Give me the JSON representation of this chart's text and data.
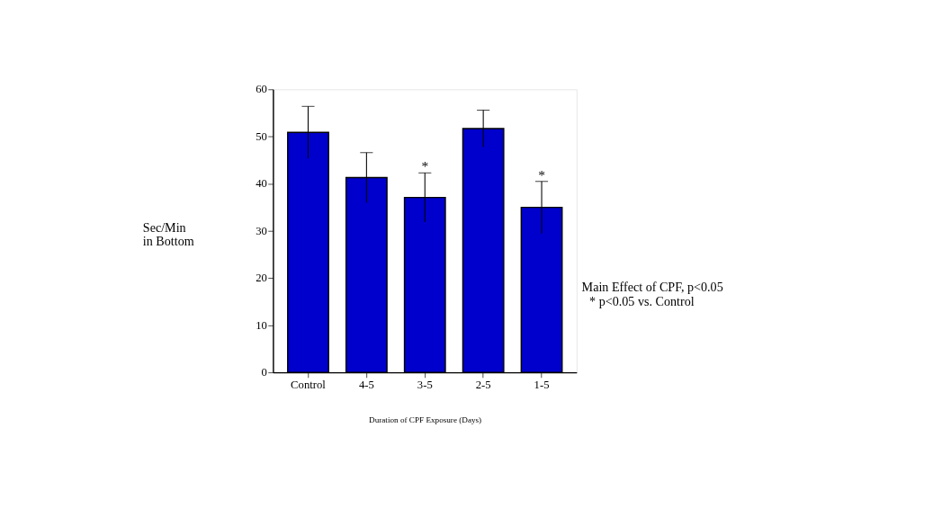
{
  "chart_data": {
    "type": "bar",
    "xlabel": "Duration of CPF Exposure (Days)",
    "ylabel": "Sec/Min\nin Bottom",
    "categories": [
      "Control",
      "4-5",
      "3-5",
      "2-5",
      "1-5"
    ],
    "values": [
      50.9,
      41.3,
      37.1,
      51.7,
      35.0
    ],
    "errors": [
      5.5,
      5.3,
      5.2,
      3.9,
      5.5
    ],
    "color": "#0000cc",
    "ylim": [
      0,
      60
    ],
    "yticks": [
      0,
      10,
      20,
      30,
      40,
      50,
      60
    ],
    "grid": false,
    "annotations": [
      {
        "text": "*",
        "x": "3-5",
        "y": 42.3
      },
      {
        "text": "*",
        "x": "1-5",
        "y": 40.5
      },
      "Main Effect of CPF, p<0.05",
      "* p<0.05 vs. Control"
    ]
  }
}
